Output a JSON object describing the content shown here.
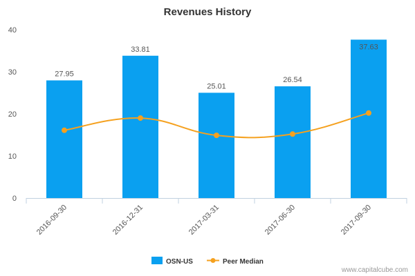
{
  "chart_data": {
    "type": "bar",
    "title": "Revenues History",
    "xlabel": "",
    "ylabel": "",
    "categories": [
      "2016-09-30",
      "2016-12-31",
      "2017-03-31",
      "2017-06-30",
      "2017-09-30"
    ],
    "ylim": [
      0,
      40
    ],
    "yticks": [
      0,
      10,
      20,
      30,
      40
    ],
    "grid": false,
    "legend_position": "bottom",
    "series": [
      {
        "name": "OSN-US",
        "type": "bar",
        "color": "#0aa0f0",
        "values": [
          27.95,
          33.81,
          25.01,
          26.54,
          37.63
        ],
        "labels": [
          "27.95",
          "33.81",
          "25.01",
          "26.54",
          "37.63"
        ]
      },
      {
        "name": "Peer Median",
        "type": "line",
        "color": "#f5a11f",
        "values": [
          16.1,
          19.0,
          14.9,
          15.2,
          20.2
        ]
      }
    ]
  },
  "watermark": "www.capitalcube.com"
}
